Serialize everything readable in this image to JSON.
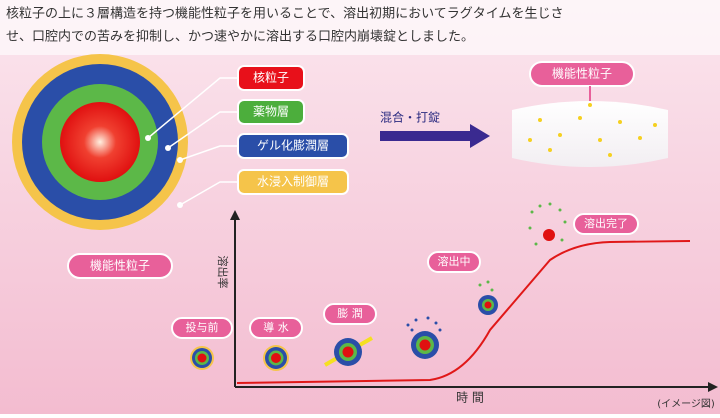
{
  "header": {
    "lines": [
      "核粒子の上に３層構造を持つ機能性粒子を用いることで、溶出初期においてラグタイムを生じさ",
      "せ、口腔内での苦みを抑制し、かつ速やかに溶出する口腔内崩壊錠としました。"
    ]
  },
  "particle": {
    "layers": [
      "核粒子",
      "薬物層",
      "ゲル化膨潤層",
      "水浸入制御層"
    ],
    "label": "機能性粒子"
  },
  "process": {
    "arrow_label": "混合・打錠",
    "tablet_label": "機能性粒子"
  },
  "graph": {
    "y_label": "溶出率",
    "x_label": "時 間",
    "stages": [
      "投与前",
      "導 水",
      "膨 潤",
      "溶出中",
      "溶出完了"
    ],
    "note": "(イメージ図)"
  }
}
